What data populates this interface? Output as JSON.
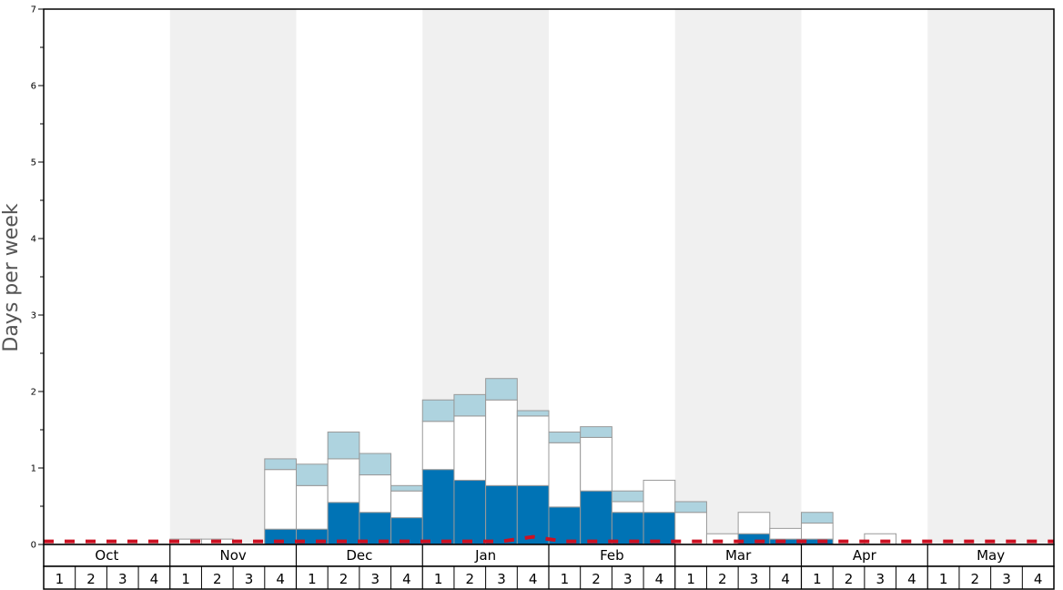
{
  "chart_data": {
    "type": "bar",
    "stacked": true,
    "title": "",
    "xlabel": "",
    "ylabel": "Days per week",
    "ylim": [
      0,
      7
    ],
    "yticks": [
      0,
      1,
      2,
      3,
      4,
      5,
      6,
      7
    ],
    "months": [
      "Oct",
      "Nov",
      "Dec",
      "Jan",
      "Feb",
      "Mar",
      "Apr",
      "May"
    ],
    "week_labels": [
      "1",
      "2",
      "3",
      "4"
    ],
    "colors": {
      "dark": "#0073b5",
      "white": "#ffffff",
      "light": "#aed3df",
      "band": "#f0f0f0",
      "dashed": "#cc1122",
      "bar_border": "#999999"
    },
    "series": [
      {
        "values": [
          0,
          0,
          0,
          0,
          0,
          0,
          0,
          0.2,
          0.2,
          0.55,
          0.42,
          0.35,
          0.98,
          0.84,
          0.77,
          0.77,
          0.49,
          0.7,
          0.42,
          0.42,
          0,
          0,
          0.14,
          0.07,
          0.07,
          0,
          0,
          0,
          0,
          0,
          0,
          0
        ],
        "color": "#0073b5"
      },
      {
        "values": [
          0,
          0,
          0,
          0,
          0.07,
          0.07,
          0,
          0.78,
          0.57,
          0.57,
          0.49,
          0.35,
          0.63,
          0.84,
          1.12,
          0.91,
          0.84,
          0.7,
          0.14,
          0.42,
          0.42,
          0.14,
          0.28,
          0.14,
          0.21,
          0,
          0.14,
          0,
          0,
          0,
          0,
          0
        ],
        "color": "#ffffff"
      },
      {
        "values": [
          0,
          0,
          0,
          0,
          0,
          0,
          0,
          0.14,
          0.28,
          0.35,
          0.28,
          0.07,
          0.28,
          0.28,
          0.28,
          0.07,
          0.14,
          0.14,
          0.14,
          0,
          0.14,
          0,
          0,
          0,
          0.14,
          0,
          0,
          0,
          0,
          0,
          0,
          0
        ],
        "color": "#aed3df"
      }
    ],
    "reference_line": {
      "style": "dashed",
      "values": [
        0.04,
        0.04,
        0.04,
        0.04,
        0.04,
        0.04,
        0.04,
        0.04,
        0.04,
        0.04,
        0.04,
        0.04,
        0.04,
        0.04,
        0.04,
        0.1,
        0.04,
        0.04,
        0.04,
        0.04,
        0.04,
        0.04,
        0.04,
        0.04,
        0.04,
        0.04,
        0.04,
        0.04,
        0.04,
        0.04,
        0.04,
        0.04
      ]
    }
  }
}
